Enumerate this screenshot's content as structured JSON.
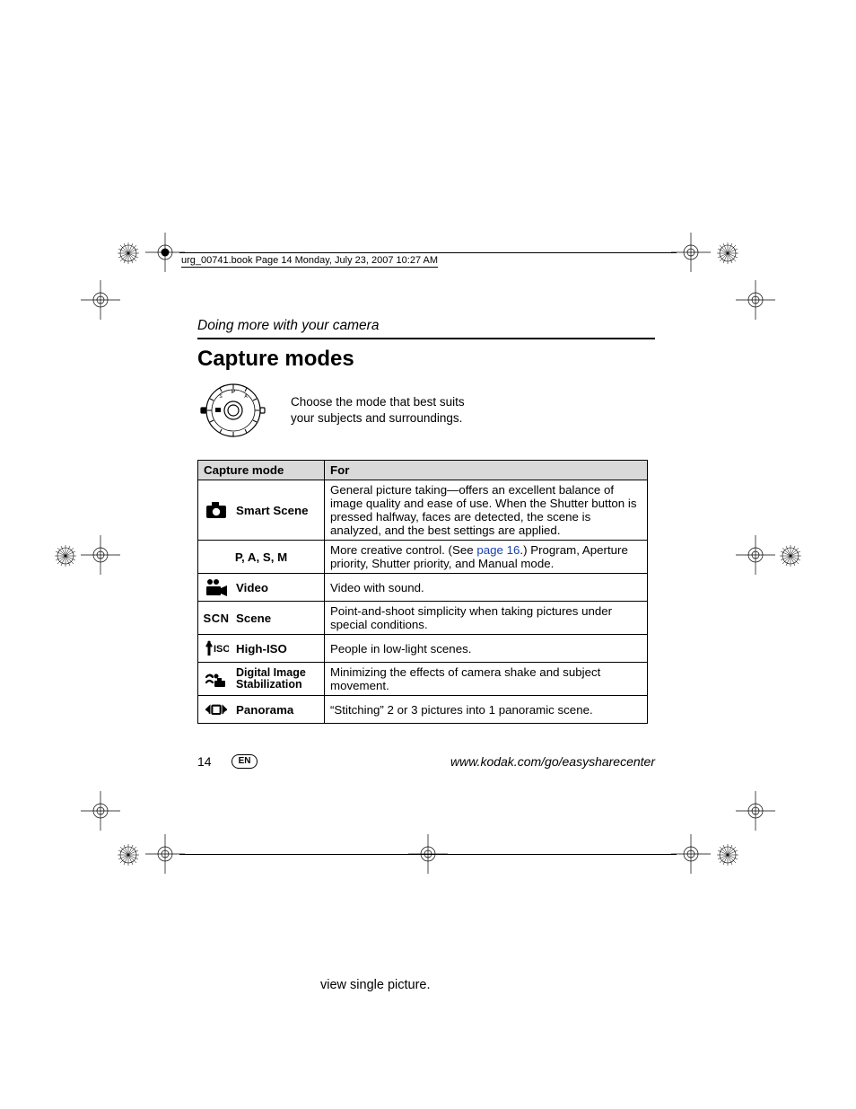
{
  "bookline": "urg_00741.book  Page 14  Monday, July 23, 2007  10:27 AM",
  "section": "Doing more with your camera",
  "title": "Capture modes",
  "intro": "Choose the mode that best suits your subjects and surroundings.",
  "table": {
    "head_mode": "Capture mode",
    "head_for": "For",
    "rows": [
      {
        "icon": "camera",
        "label": "Smart Scene",
        "for_pre": "General picture taking—offers an excellent balance of image quality and ease of use. When the Shutter button is pressed halfway, faces are detected, the scene is analyzed, and the best settings are applied.",
        "link": "",
        "for_post": ""
      },
      {
        "icon": "none",
        "label": "P, A, S, M",
        "center_label": true,
        "for_pre": "More creative control. (See ",
        "link": "page 16",
        "for_post": ".) Program, Aperture priority, Shutter priority, and Manual mode."
      },
      {
        "icon": "video",
        "label": "Video",
        "for_pre": "Video with sound.",
        "link": "",
        "for_post": ""
      },
      {
        "icon": "scn",
        "label": "Scene",
        "for_pre": "Point-and-shoot simplicity when taking pictures under special conditions.",
        "link": "",
        "for_post": ""
      },
      {
        "icon": "iso",
        "label": "High-ISO",
        "for_pre": "People in low-light scenes.",
        "link": "",
        "for_post": ""
      },
      {
        "icon": "dis",
        "label": "Digital Image Stabilization",
        "for_pre": "Minimizing the effects of camera shake and subject movement.",
        "link": "",
        "for_post": ""
      },
      {
        "icon": "pano",
        "label": "Panorama",
        "for_pre": "“Stitching” 2 or 3 pictures into 1 panoramic scene.",
        "link": "",
        "for_post": ""
      }
    ]
  },
  "footer": {
    "page": "14",
    "lang": "EN",
    "url": "www.kodak.com/go/easysharecenter"
  },
  "stray": "view single picture."
}
